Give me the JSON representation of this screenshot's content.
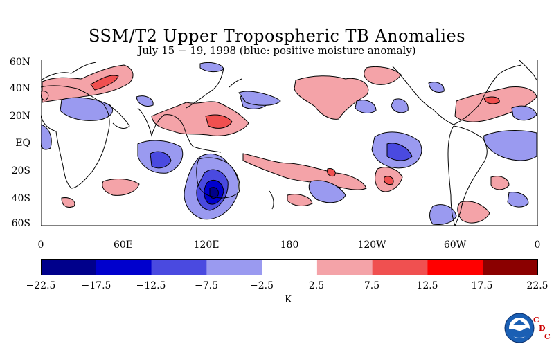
{
  "title": "SSM/T2 Upper Tropospheric TB Anomalies",
  "subtitle": "July 15 − 19, 1998 (blue: positive moisture anomaly)",
  "lat_labels": [
    "60N",
    "40N",
    "20N",
    "EQ",
    "20S",
    "40S",
    "60S"
  ],
  "lon_labels": [
    "0",
    "60E",
    "120E",
    "180",
    "120W",
    "60W",
    "0"
  ],
  "colorbar": {
    "ticks": [
      "−22.5",
      "−17.5",
      "−12.5",
      "−7.5",
      "−2.5",
      "2.5",
      "7.5",
      "12.5",
      "17.5",
      "22.5"
    ],
    "colors": [
      "#00008b",
      "#0000cd",
      "#4a4ae0",
      "#9a9af0",
      "#ffffff",
      "#f4a3a8",
      "#f05050",
      "#ff0000",
      "#8b0000"
    ],
    "unit": "K"
  },
  "logo": {
    "icon": "noaa-logo-icon",
    "letters": [
      "C",
      "D",
      "C"
    ]
  }
}
